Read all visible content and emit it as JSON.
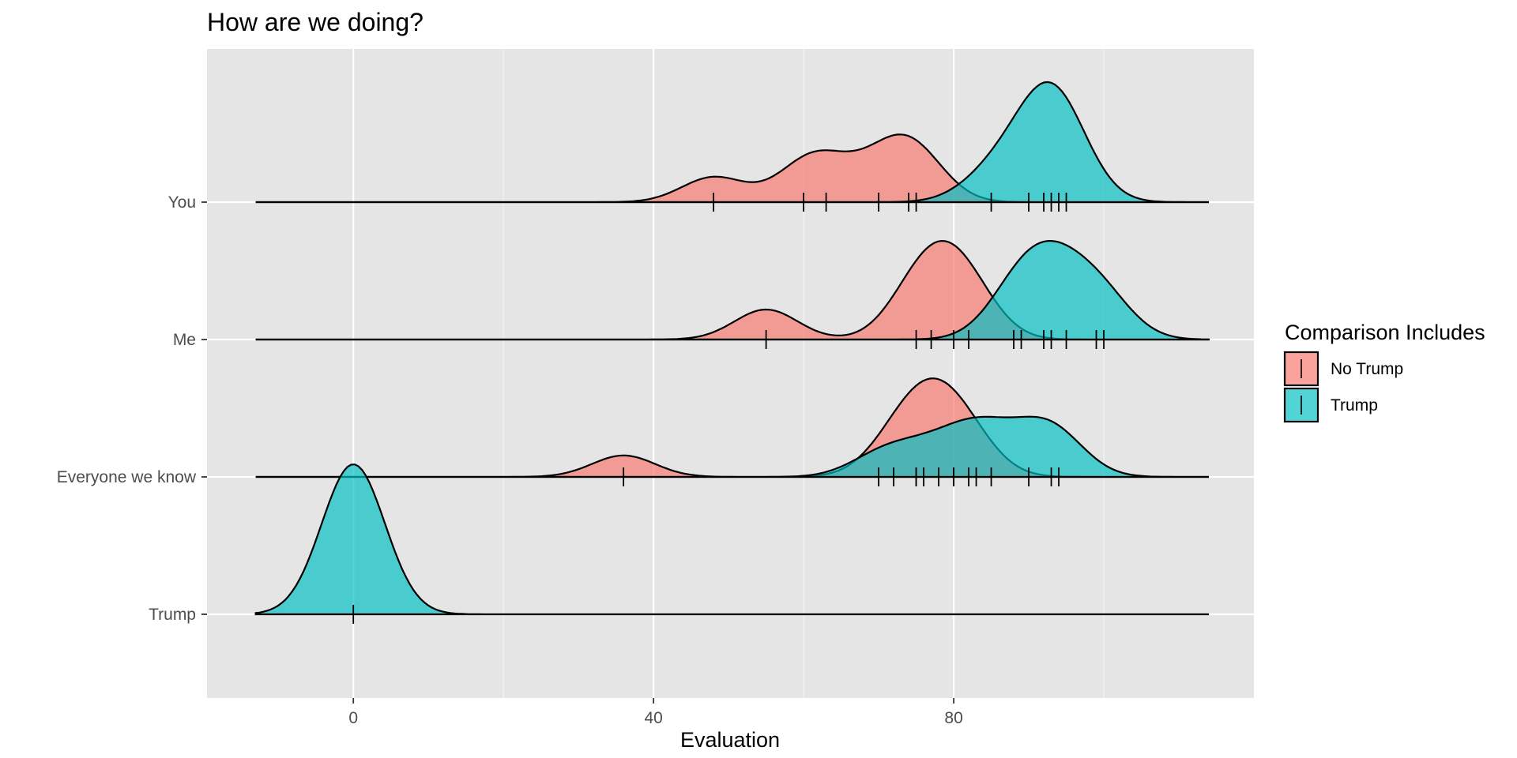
{
  "chart_data": {
    "type": "ridgeline-density",
    "title": "How are we doing?",
    "xlabel": "Evaluation",
    "ylabel": "",
    "xlim": [
      -19.5,
      120
    ],
    "x_ticks": [
      0,
      40,
      80
    ],
    "x_minor_ticks": [
      20,
      60,
      100
    ],
    "density_range": [
      -13,
      114
    ],
    "bandwidth": 4.2,
    "rows": [
      "You",
      "Me",
      "Everyone we know",
      "Trump"
    ],
    "grid": true,
    "legend": {
      "title": "Comparison Includes",
      "position": "right",
      "entries": [
        "No Trump",
        "Trump"
      ]
    },
    "series": [
      {
        "name": "No Trump",
        "color": "#F8766D",
        "groups": {
          "You": [
            48,
            60,
            63,
            70,
            74,
            75
          ],
          "Me": [
            55,
            75,
            77,
            80,
            82
          ],
          "Everyone we know": [
            36,
            72,
            75,
            76,
            78,
            80,
            82
          ]
        }
      },
      {
        "name": "Trump",
        "color": "#00BFC4",
        "groups": {
          "You": [
            85,
            90,
            92,
            93,
            94,
            95
          ],
          "Me": [
            88,
            89,
            92,
            93,
            95,
            99,
            100
          ],
          "Everyone we know": [
            70,
            75,
            80,
            83,
            85,
            90,
            93,
            94
          ],
          "Trump": [
            0
          ]
        }
      }
    ]
  }
}
